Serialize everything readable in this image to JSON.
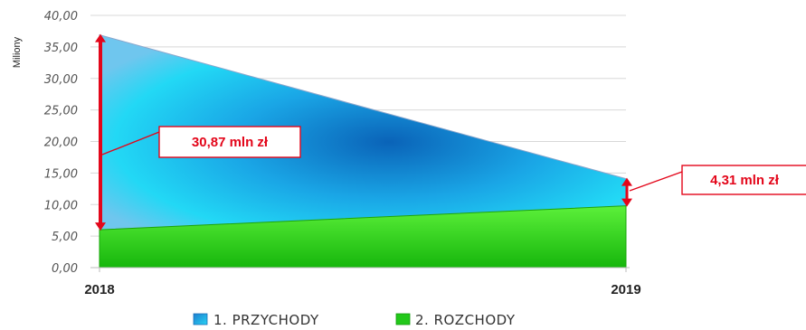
{
  "chart_data": {
    "type": "area",
    "ylabel": "Miliony",
    "ylim": [
      0,
      40
    ],
    "yticks": [
      "0,00",
      "5,00",
      "10,00",
      "15,00",
      "20,00",
      "25,00",
      "30,00",
      "35,00",
      "40,00"
    ],
    "categories": [
      "2018",
      "2019"
    ],
    "series": [
      {
        "name": "1. PRZYCHODY",
        "values": [
          36.9,
          14.1
        ],
        "color": "#1fb6e8"
      },
      {
        "name": "2. ROZCHODY",
        "values": [
          6.0,
          9.8
        ],
        "color": "#2ecc1a"
      }
    ],
    "annotations": [
      {
        "text": "30,87 mln zł",
        "category": "2018"
      },
      {
        "text": "4,31 mln zł",
        "category": "2019"
      }
    ],
    "grid": true,
    "legend_position": "bottom"
  }
}
